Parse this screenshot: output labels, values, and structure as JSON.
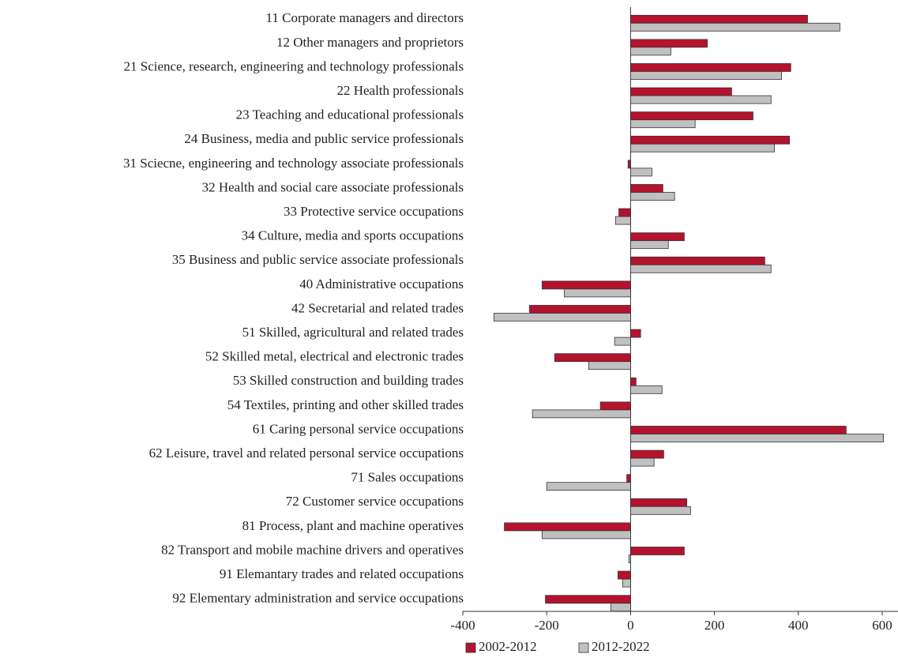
{
  "chart_data": {
    "type": "barh",
    "categories": [
      "11 Corporate managers and directors",
      "12 Other managers and proprietors",
      "21 Science, research, engineering and technology professionals",
      "22 Health professionals",
      "23 Teaching and educational professionals",
      "24 Business, media and public service professionals",
      "31 Sciecne, engineering and technology associate professionals",
      "32 Health and social care associate professionals",
      "33 Protective service occupations",
      "34 Culture, media and sports occupations",
      "35 Business and public service associate professionals",
      "40 Administrative occupations",
      "42 Secretarial and related trades",
      "51 Skilled, agricultural and related trades",
      "52 Skilled metal, electrical and electronic trades",
      "53 Skilled construction and building trades",
      "54 Textiles, printing and other skilled trades",
      "61 Caring personal service occupations",
      "62 Leisure, travel and related personal service occupations",
      "71 Sales occupations",
      "72 Customer service occupations",
      "81 Process, plant and machine operatives",
      "82 Transport and mobile machine drivers and operatives",
      "91 Elemantary trades and related occupations",
      "92 Elementary administration and service occupations"
    ],
    "series": [
      {
        "name": "2002-2012",
        "color": "#b5122e",
        "values": [
          422,
          183,
          382,
          241,
          292,
          379,
          -6,
          77,
          -28,
          128,
          320,
          -211,
          -241,
          24,
          -181,
          13,
          -72,
          514,
          79,
          -9,
          134,
          -301,
          128,
          -30,
          -203
        ]
      },
      {
        "name": "2012-2022",
        "color": "#c0c0c0",
        "values": [
          499,
          96,
          360,
          335,
          154,
          343,
          51,
          105,
          -36,
          90,
          335,
          -158,
          -326,
          -38,
          -100,
          75,
          -234,
          603,
          56,
          -200,
          143,
          -211,
          -4,
          -19,
          -47
        ]
      }
    ],
    "xlim": [
      -400,
      600
    ],
    "xticks": [
      -400,
      -200,
      0,
      200,
      400,
      600
    ],
    "legend": "bottom",
    "grid": false
  }
}
